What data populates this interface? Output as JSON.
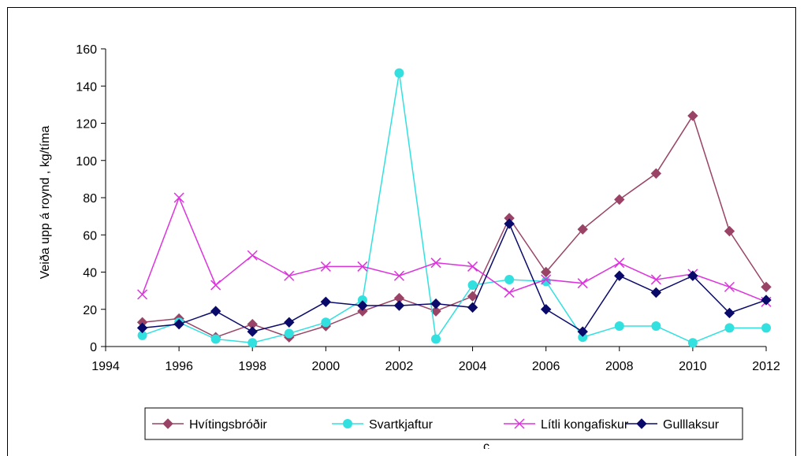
{
  "chart_data": {
    "type": "line",
    "ylabel": "Veiða upp á roynd , kg/tíma",
    "xlabel": "",
    "xlim": [
      1994,
      2012
    ],
    "ylim": [
      0,
      160
    ],
    "x_ticks": [
      "1994",
      "1996",
      "1998",
      "2000",
      "2002",
      "2004",
      "2006",
      "2008",
      "2010",
      "2012"
    ],
    "y_ticks": [
      "0",
      "20",
      "40",
      "60",
      "80",
      "100",
      "120",
      "140",
      "160"
    ],
    "grid": false,
    "legend_position": "bottom",
    "x": [
      1995,
      1996,
      1997,
      1998,
      1999,
      2000,
      2001,
      2002,
      2003,
      2004,
      2005,
      2006,
      2007,
      2008,
      2009,
      2010,
      2011,
      2012
    ],
    "series": [
      {
        "name": "Hvítingsbróðir",
        "color": "#994466",
        "marker": "diamond",
        "values": [
          13,
          15,
          5,
          12,
          5,
          11,
          19,
          26,
          19,
          27,
          69,
          40,
          63,
          79,
          93,
          124,
          62,
          32
        ]
      },
      {
        "name": "Svartkjaftur",
        "color": "#33e0e0",
        "marker": "circle",
        "values": [
          6,
          13,
          4,
          2,
          7,
          13,
          25,
          147,
          4,
          33,
          36,
          35,
          5,
          11,
          11,
          2,
          10,
          10
        ]
      },
      {
        "name": "Lítli kongafiskur",
        "color": "#dd33dd",
        "marker": "x",
        "values": [
          28,
          80,
          33,
          49,
          38,
          43,
          43,
          38,
          45,
          43,
          29,
          36,
          34,
          45,
          36,
          39,
          32,
          24
        ]
      },
      {
        "name": "Gulllaksur",
        "color": "#0a0a6a",
        "marker": "diamond",
        "values": [
          10,
          12,
          19,
          8,
          13,
          24,
          22,
          22,
          23,
          21,
          66,
          20,
          8,
          38,
          29,
          38,
          18,
          25
        ]
      }
    ],
    "stray_text": "c"
  }
}
